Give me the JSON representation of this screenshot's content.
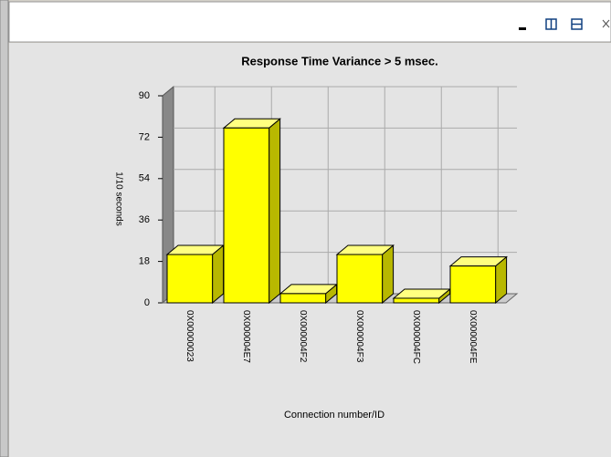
{
  "chart_data": {
    "type": "bar3d",
    "title": "Response Time Variance > 5 msec.",
    "y_label": "1/10 seconds",
    "x_label": "Connection number/ID",
    "categories": [
      "0X00000023",
      "0X000004E7",
      "0X000004F2",
      "0X000004F3",
      "0X000004FC",
      "0X000004FE"
    ],
    "values": [
      21,
      76,
      4,
      21,
      2,
      16
    ],
    "color": "#ffff00",
    "ylim": [
      0,
      90
    ],
    "yticks": [
      0,
      18,
      36,
      54,
      72,
      90
    ],
    "grid": true
  }
}
